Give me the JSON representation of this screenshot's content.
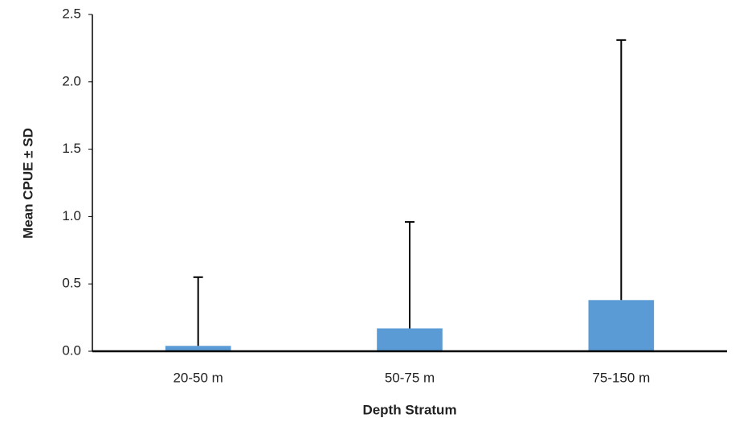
{
  "chart_data": {
    "type": "bar",
    "x_label": "Depth Stratum",
    "y_label": "Mean CPUE ± SD",
    "categories": [
      "20-50 m",
      "50-75 m",
      "75-150 m"
    ],
    "values": [
      0.04,
      0.17,
      0.38
    ],
    "errors": [
      0.51,
      0.79,
      1.93
    ],
    "color": "#5b9bd5",
    "ylim": [
      0,
      2.5
    ],
    "yticks": [
      {
        "value": 0,
        "label": "0.0"
      },
      0.5,
      {
        "value": 1,
        "label": "1.0"
      },
      1.5,
      {
        "value": 2,
        "label": "2.0"
      },
      2.5
    ],
    "grid": false
  }
}
